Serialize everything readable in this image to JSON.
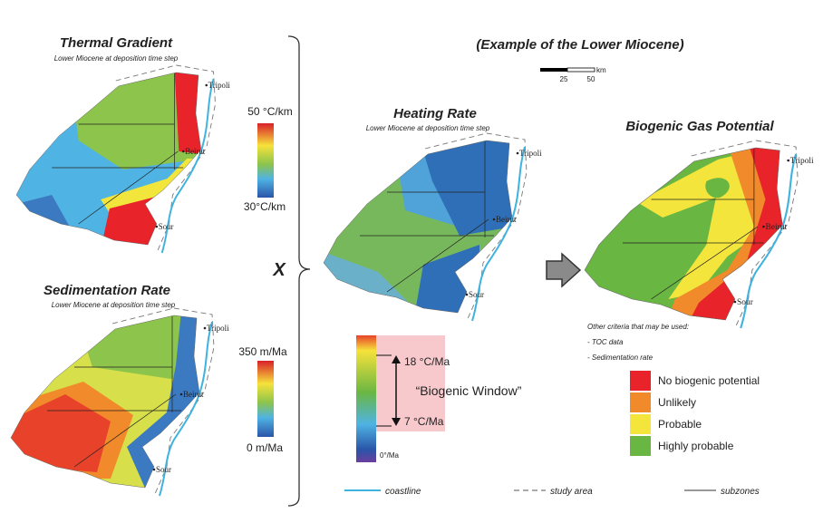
{
  "title": "(Example of the Lower Miocene)",
  "scale_bar": {
    "unit": "km",
    "labels": [
      "25",
      "50"
    ]
  },
  "operator": "X",
  "thermal_gradient": {
    "title": "Thermal Gradient",
    "subtitle": "Lower Miocene at deposition time step",
    "legend_max": "50 °C/km",
    "legend_min": "30°C/km",
    "places": [
      "Tripoli",
      "Beirut",
      "Sour"
    ]
  },
  "sedimentation_rate": {
    "title": "Sedimentation Rate",
    "subtitle": "Lower Miocene at deposition time step",
    "legend_max": "350 m/Ma",
    "legend_min": "0 m/Ma",
    "places": [
      "Tripoli",
      "Beirut",
      "Sour"
    ]
  },
  "heating_rate": {
    "title": "Heating Rate",
    "subtitle": "Lower Miocene at deposition time step",
    "places": [
      "Tripoli",
      "Beirut",
      "Sour"
    ],
    "legend": {
      "upper": "18 °C/Ma",
      "lower": "7 °C/Ma",
      "window": "“Biogenic Window”",
      "zero": "0°/Ma"
    }
  },
  "biogenic_gas_potential": {
    "title": "Biogenic Gas Potential",
    "places": [
      "Tripoli",
      "Beirut",
      "Sour"
    ],
    "criteria_title": "Other criteria that may be used:",
    "criteria": [
      "- TOC data",
      "- Sedimentation rate"
    ],
    "legend": [
      {
        "label": "No biogenic potential",
        "color": "#e8232a"
      },
      {
        "label": "Unlikely",
        "color": "#f08a2a"
      },
      {
        "label": "Probable",
        "color": "#f4e53d"
      },
      {
        "label": "Highly probable",
        "color": "#6ab643"
      }
    ]
  },
  "map_legend": [
    "coastline",
    "study area",
    "subzones"
  ]
}
